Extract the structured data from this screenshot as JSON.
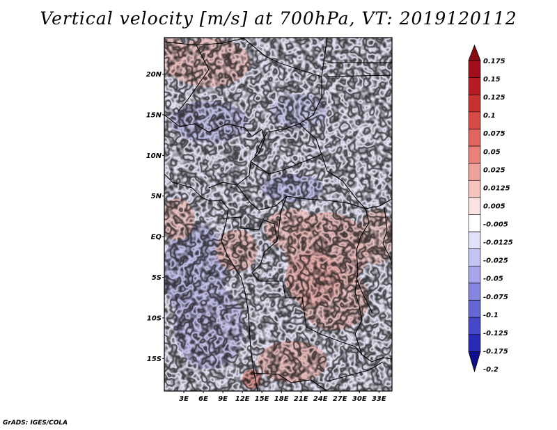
{
  "title": "Vertical velocity [m/s] at 700hPa, VT: 2019120112",
  "credit": "GrADS: IGES/COLA",
  "map": {
    "lat_labels": [
      "20N",
      "15N",
      "10N",
      "5N",
      "EQ",
      "5S",
      "10S",
      "15S"
    ],
    "lon_labels": [
      "3E",
      "6E",
      "9E",
      "12E",
      "15E",
      "18E",
      "21E",
      "24E",
      "27E",
      "30E",
      "33E"
    ],
    "lon_range": [
      0,
      35
    ],
    "lat_range": [
      -19,
      24.5
    ]
  },
  "colorbar": {
    "labels": [
      "0.175",
      "0.15",
      "0.125",
      "0.1",
      "0.075",
      "0.05",
      "0.025",
      "0.0125",
      "0.005",
      "-0.005",
      "-0.0125",
      "-0.025",
      "-0.05",
      "-0.075",
      "-0.1",
      "-0.125",
      "-0.175",
      "-0.2"
    ],
    "colors": [
      "#a00f1a",
      "#b71c25",
      "#c9312f",
      "#d84a45",
      "#e1645d",
      "#e98079",
      "#f0a19b",
      "#f6c3be",
      "#fbe3e0",
      "#ffffff",
      "#e1e1fb",
      "#c4c4f4",
      "#a5a5ec",
      "#8585e2",
      "#6666d6",
      "#4747c9",
      "#2a2ab8",
      "#1515a0"
    ],
    "top_arrow_color": "#8a0a14",
    "bottom_arrow_color": "#0e0e88"
  }
}
